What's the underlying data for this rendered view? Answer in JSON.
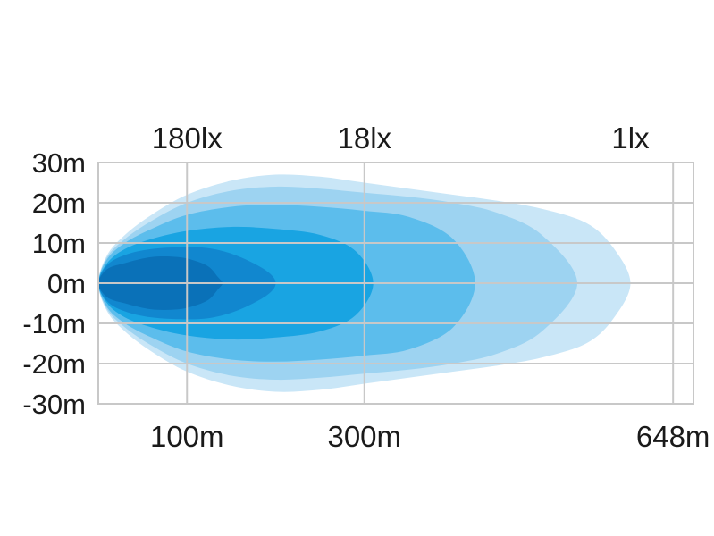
{
  "chart_data": {
    "type": "area",
    "title": "",
    "xlabel": "",
    "ylabel": "",
    "x_ticks": [
      {
        "value": 100,
        "label": "100m"
      },
      {
        "value": 300,
        "label": "300m"
      },
      {
        "value": 648,
        "label": "648m"
      }
    ],
    "y_ticks": [
      {
        "value": 30,
        "label": "30m"
      },
      {
        "value": 20,
        "label": "20m"
      },
      {
        "value": 10,
        "label": "10m"
      },
      {
        "value": 0,
        "label": "0m"
      },
      {
        "value": -10,
        "label": "-10m"
      },
      {
        "value": -20,
        "label": "-20m"
      },
      {
        "value": -30,
        "label": "-30m"
      }
    ],
    "lux_labels": [
      {
        "x": 100,
        "label": "180lx"
      },
      {
        "x": 300,
        "label": "18lx"
      },
      {
        "x": 600,
        "label": "1lx"
      }
    ],
    "xlim": [
      0,
      671
    ],
    "ylim": [
      -30,
      30
    ],
    "grid": true,
    "series": [
      {
        "color": "#c9e6f7",
        "x": [
          0,
          10,
          30,
          60,
          100,
          150,
          200,
          250,
          300,
          350,
          400,
          450,
          500,
          550,
          580,
          600
        ],
        "half_width": [
          0,
          7,
          12,
          17,
          22,
          25.5,
          27,
          26.5,
          25,
          23.5,
          22,
          20.5,
          18.5,
          15,
          9,
          0
        ]
      },
      {
        "color": "#9dd3f1",
        "x": [
          0,
          10,
          30,
          60,
          100,
          150,
          200,
          250,
          300,
          350,
          400,
          450,
          500,
          540
        ],
        "half_width": [
          0,
          6.5,
          11,
          15.5,
          20,
          23,
          24,
          23.5,
          22.5,
          21.5,
          20,
          17.5,
          12,
          0
        ]
      },
      {
        "color": "#5cbdec",
        "x": [
          0,
          10,
          30,
          60,
          100,
          150,
          200,
          250,
          300,
          350,
          400,
          425
        ],
        "half_width": [
          0,
          6,
          10,
          13.5,
          17,
          19,
          19.5,
          19,
          18,
          16.5,
          11,
          0
        ]
      },
      {
        "color": "#19a4e2",
        "x": [
          0,
          10,
          30,
          60,
          100,
          150,
          200,
          250,
          290,
          310
        ],
        "half_width": [
          0,
          5,
          8.5,
          11,
          13,
          14,
          13.5,
          12,
          8,
          0
        ]
      },
      {
        "color": "#1187cf",
        "x": [
          0,
          10,
          30,
          60,
          100,
          130,
          160,
          190,
          200
        ],
        "half_width": [
          0,
          4.5,
          7,
          8.5,
          9,
          8.5,
          6.5,
          3,
          0
        ]
      },
      {
        "color": "#0a71b8",
        "x": [
          0,
          10,
          30,
          60,
          90,
          110,
          125,
          135,
          140
        ],
        "half_width": [
          0,
          3.5,
          5,
          6.5,
          6.5,
          5.5,
          4,
          1.5,
          0
        ]
      }
    ]
  }
}
